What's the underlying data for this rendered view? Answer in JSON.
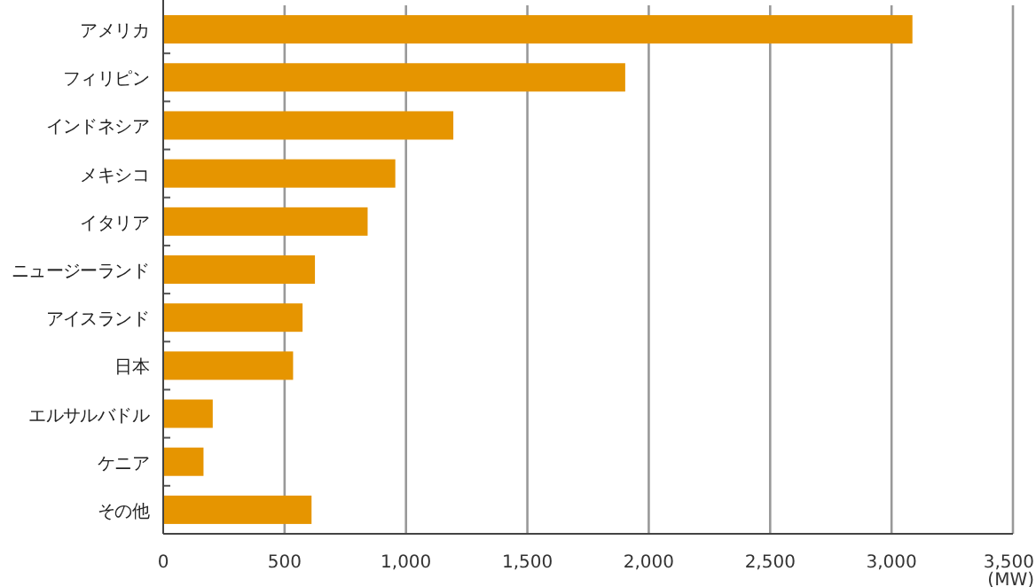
{
  "chart_data": {
    "type": "bar",
    "orientation": "horizontal",
    "categories": [
      "アメリカ",
      "フィリピン",
      "インドネシア",
      "メキシコ",
      "イタリア",
      "ニュージーランド",
      "アイスランド",
      "日本",
      "エルサルバドル",
      "ケニア",
      "その他"
    ],
    "values": [
      3086,
      1903,
      1195,
      956,
      842,
      625,
      574,
      535,
      204,
      166,
      611
    ],
    "color": "#e69500",
    "xlim": [
      0,
      3500
    ],
    "xticks": [
      0,
      {
        "value": 500,
        "label": "500"
      },
      {
        "value": 1000,
        "label": "1,000"
      },
      {
        "value": 1500,
        "label": "1,500"
      },
      {
        "value": 2000,
        "label": "2,000"
      },
      {
        "value": 2500,
        "label": "2,500"
      },
      {
        "value": 3000,
        "label": "3,000"
      },
      {
        "value": 3500,
        "label": "3,500"
      }
    ],
    "xlabel": "(MW)",
    "grid": "x"
  }
}
